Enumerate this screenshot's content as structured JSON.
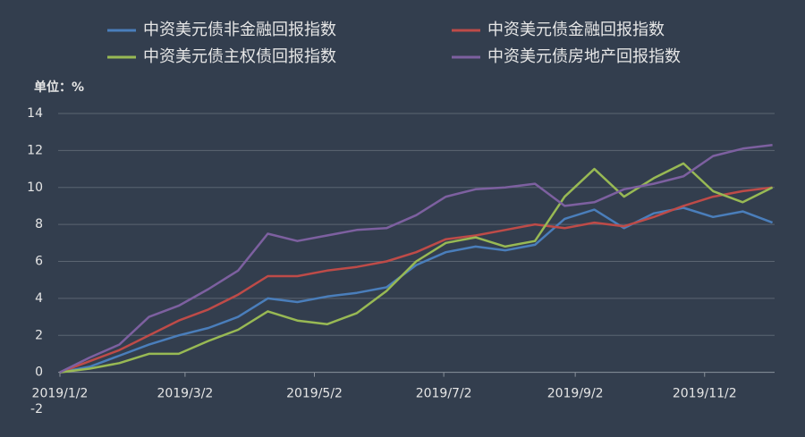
{
  "chart_data": {
    "type": "line",
    "y_label": "单位：%",
    "x": [
      "2019/1/2",
      "2019/1/16",
      "2019/1/30",
      "2019/2/13",
      "2019/2/27",
      "2019/3/13",
      "2019/3/27",
      "2019/4/10",
      "2019/4/24",
      "2019/5/8",
      "2019/5/22",
      "2019/6/5",
      "2019/6/19",
      "2019/7/3",
      "2019/7/17",
      "2019/7/31",
      "2019/8/14",
      "2019/8/28",
      "2019/9/11",
      "2019/9/25",
      "2019/10/9",
      "2019/10/23",
      "2019/11/6",
      "2019/11/20",
      "2019/12/4"
    ],
    "series": [
      {
        "name": "中资美元债非金融回报指数",
        "color": "#4a7ebb",
        "values": [
          0,
          0.3,
          0.9,
          1.5,
          2.0,
          2.4,
          3.0,
          4.0,
          3.8,
          4.1,
          4.3,
          4.6,
          5.8,
          6.5,
          6.8,
          6.6,
          6.9,
          8.3,
          8.8,
          7.8,
          8.6,
          8.9,
          8.4,
          8.7,
          8.1
        ]
      },
      {
        "name": "中资美元债金融回报指数",
        "color": "#be4b48",
        "values": [
          0,
          0.6,
          1.2,
          2.0,
          2.8,
          3.4,
          4.2,
          5.2,
          5.2,
          5.5,
          5.7,
          6.0,
          6.5,
          7.2,
          7.4,
          7.7,
          8.0,
          7.8,
          8.1,
          7.9,
          8.4,
          9.0,
          9.5,
          9.8,
          10.0
        ]
      },
      {
        "name": "中资美元债主权债回报指数",
        "color": "#98b954",
        "values": [
          0,
          0.2,
          0.5,
          1.0,
          1.0,
          1.7,
          2.3,
          3.3,
          2.8,
          2.6,
          3.2,
          4.4,
          6.0,
          7.0,
          7.3,
          6.8,
          7.1,
          9.5,
          11.0,
          9.5,
          10.5,
          11.3,
          9.8,
          9.2,
          10.0
        ]
      },
      {
        "name": "中资美元债房地产回报指数",
        "color": "#7d60a0",
        "values": [
          0,
          0.8,
          1.5,
          3.0,
          3.6,
          4.5,
          5.5,
          7.5,
          7.1,
          7.4,
          7.7,
          7.8,
          8.5,
          9.5,
          9.9,
          10.0,
          10.2,
          9.0,
          9.2,
          9.9,
          10.2,
          10.6,
          11.7,
          12.1,
          12.3
        ]
      }
    ],
    "xlim": [
      "2019/1/2",
      "2019/12/5"
    ],
    "xticks": [
      "2019/1/2",
      "2019/3/2",
      "2019/5/2",
      "2019/7/2",
      "2019/9/2",
      "2019/11/2"
    ],
    "ylim": [
      -2,
      14
    ],
    "yticks": [
      -2,
      0,
      2,
      4,
      6,
      8,
      10,
      12,
      14
    ],
    "grid": true
  }
}
